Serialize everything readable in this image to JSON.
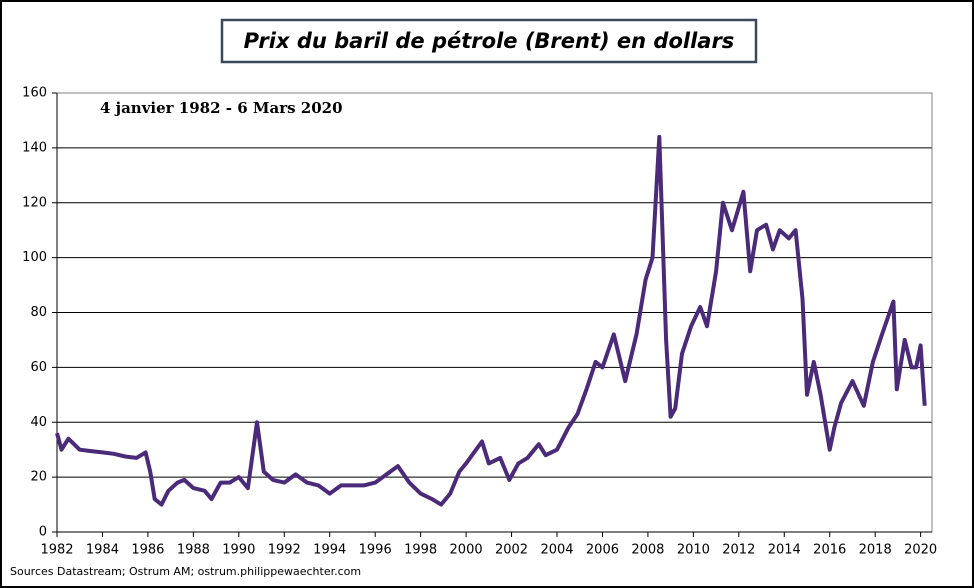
{
  "chart_data": {
    "type": "line",
    "title": "Prix du baril de pétrole (Brent) en dollars",
    "subtitle": "4 janvier 1982 - 6 Mars 2020",
    "source": "Sources Datastream; Ostrum AM; ostrum.philippewaechter.com",
    "xlim": [
      1982,
      2020.5
    ],
    "xticks": [
      1982,
      1984,
      1986,
      1988,
      1990,
      1992,
      1994,
      1996,
      1998,
      2000,
      2002,
      2004,
      2006,
      2008,
      2010,
      2012,
      2014,
      2016,
      2018,
      2020
    ],
    "ylim": [
      0,
      160
    ],
    "yticks": [
      0,
      20,
      40,
      60,
      80,
      100,
      120,
      140,
      160
    ],
    "grid": true,
    "series": [
      {
        "color": "#4b2a7a",
        "x": [
          1982,
          1982.2,
          1982.5,
          1983,
          1983.5,
          1984,
          1984.5,
          1985,
          1985.5,
          1985.9,
          1986.1,
          1986.3,
          1986.6,
          1986.9,
          1987.3,
          1987.6,
          1988,
          1988.5,
          1988.8,
          1989.2,
          1989.6,
          1990,
          1990.4,
          1990.8,
          1991.1,
          1991.5,
          1992,
          1992.5,
          1993,
          1993.5,
          1994,
          1994.5,
          1995,
          1995.5,
          1996,
          1996.5,
          1997,
          1997.5,
          1998,
          1998.5,
          1998.9,
          1999.3,
          1999.7,
          2000,
          2000.7,
          2001,
          2001.5,
          2001.9,
          2002.3,
          2002.7,
          2003.2,
          2003.5,
          2004,
          2004.5,
          2004.9,
          2005.3,
          2005.7,
          2006,
          2006.5,
          2007,
          2007.5,
          2007.9,
          2008.2,
          2008.5,
          2008.8,
          2009,
          2009.2,
          2009.5,
          2009.9,
          2010.3,
          2010.6,
          2011,
          2011.3,
          2011.7,
          2012.2,
          2012.5,
          2012.8,
          2013.2,
          2013.5,
          2013.8,
          2014.2,
          2014.5,
          2014.8,
          2015,
          2015.3,
          2015.6,
          2016,
          2016.2,
          2016.5,
          2017,
          2017.5,
          2017.9,
          2018.3,
          2018.8,
          2018.95,
          2019.3,
          2019.6,
          2019.8,
          2020,
          2020.18
        ],
        "values": [
          36,
          30,
          34,
          30,
          29.5,
          29,
          28.5,
          27.5,
          27,
          29,
          22,
          12,
          10,
          15,
          18,
          19,
          16,
          15,
          12,
          18,
          18,
          20,
          16,
          40,
          22,
          19,
          18,
          21,
          18,
          17,
          14,
          17,
          17,
          17,
          18,
          21,
          24,
          18,
          14,
          12,
          10,
          14,
          22,
          25,
          33,
          25,
          27,
          19,
          25,
          27,
          32,
          28,
          30,
          38,
          43,
          52,
          62,
          60,
          72,
          55,
          72,
          92,
          100,
          144,
          70,
          42,
          45,
          65,
          75,
          82,
          75,
          95,
          120,
          110,
          124,
          95,
          110,
          112,
          103,
          110,
          107,
          110,
          85,
          50,
          62,
          50,
          30,
          38,
          47,
          55,
          46,
          62,
          72,
          84,
          52,
          70,
          60,
          60,
          68,
          46
        ]
      }
    ]
  }
}
